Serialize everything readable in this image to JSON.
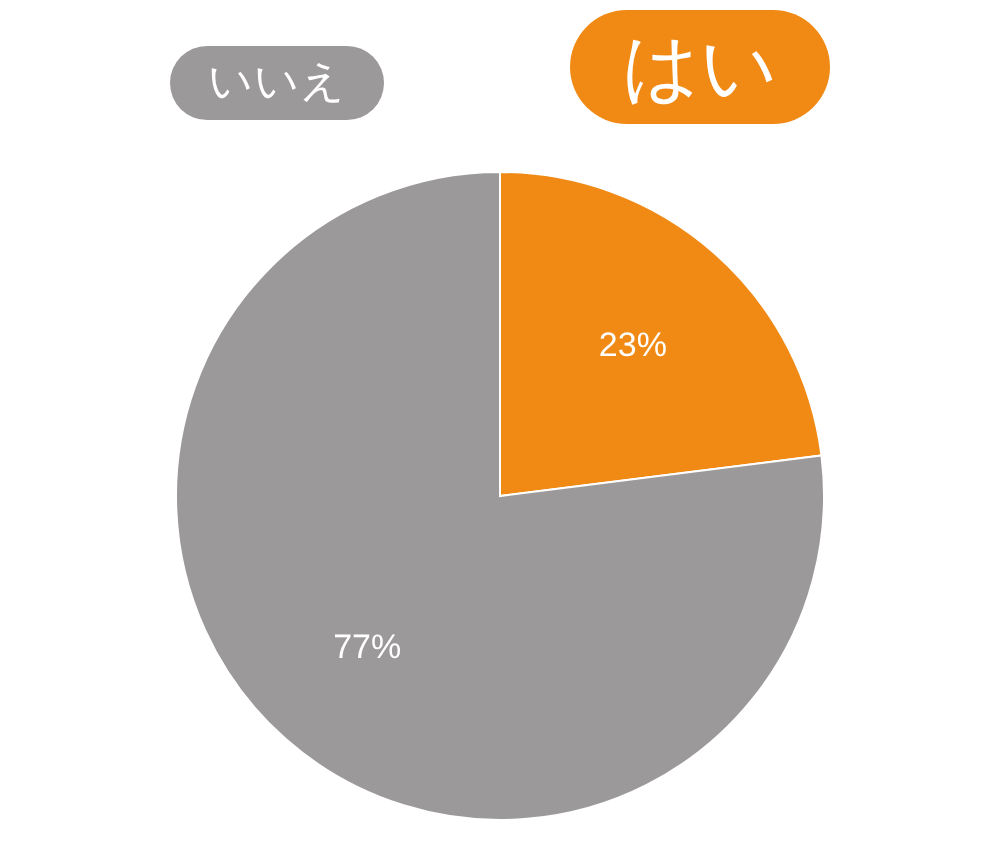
{
  "chart_data": {
    "type": "pie",
    "categories": [
      "はい",
      "いいえ"
    ],
    "values": [
      23,
      77
    ],
    "colors": [
      "#f08a15",
      "#9b9999"
    ],
    "value_labels": [
      "23%",
      "77%"
    ]
  }
}
